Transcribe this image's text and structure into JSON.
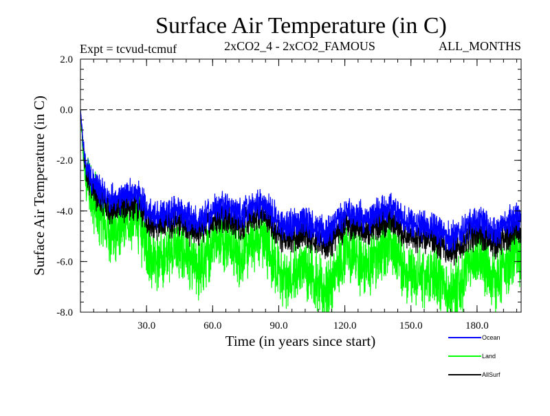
{
  "chart_data": {
    "type": "line",
    "title": "Surface Air Temperature (in C)",
    "subtitle_left": "Expt = tcvud-tcmuf",
    "subtitle_center": "2xCO2_4 - 2xCO2_FAMOUS",
    "subtitle_right": "ALL_MONTHS",
    "xlabel": "Time (in years since start)",
    "ylabel": "Surface Air Temperature (in C)",
    "xlim": [
      0,
      200
    ],
    "ylim": [
      -8.0,
      2.0
    ],
    "xticks": [
      30.0,
      60.0,
      90.0,
      120.0,
      150.0,
      180.0
    ],
    "xtick_labels": [
      "30.0",
      "60.0",
      "90.0",
      "120.0",
      "150.0",
      "180.0"
    ],
    "yticks": [
      -8.0,
      -6.0,
      -4.0,
      -2.0,
      0.0,
      2.0
    ],
    "ytick_labels": [
      "-8.0",
      "-6.0",
      "-4.0",
      "-2.0",
      "0.0",
      "2.0"
    ],
    "reference_line": {
      "y": 0.0,
      "style": "dashed"
    },
    "series": [
      {
        "name": "Land",
        "color": "#00ff00",
        "x": [
          0,
          1,
          2,
          3,
          5,
          8,
          10,
          15,
          20,
          25,
          30,
          40,
          50,
          60,
          70,
          80,
          90,
          100,
          110,
          120,
          130,
          140,
          150,
          160,
          170,
          180,
          190,
          200
        ],
        "values": [
          0.0,
          -1.5,
          -2.8,
          -3.5,
          -4.2,
          -4.7,
          -4.9,
          -5.0,
          -5.1,
          -5.1,
          -5.2,
          -5.3,
          -5.4,
          -5.6,
          -5.8,
          -5.9,
          -6.0,
          -6.1,
          -6.3,
          -6.3,
          -6.2,
          -6.1,
          -6.0,
          -6.4,
          -6.3,
          -6.5,
          -6.7,
          -6.6
        ]
      },
      {
        "name": "AllSurf",
        "color": "#000000",
        "x": [
          0,
          1,
          2,
          3,
          5,
          8,
          10,
          15,
          20,
          25,
          30,
          40,
          50,
          60,
          70,
          80,
          90,
          100,
          110,
          120,
          130,
          140,
          150,
          160,
          170,
          180,
          190,
          200
        ],
        "values": [
          0.0,
          -1.2,
          -2.3,
          -2.9,
          -3.4,
          -3.8,
          -3.9,
          -4.0,
          -4.1,
          -4.1,
          -4.2,
          -4.3,
          -4.4,
          -4.5,
          -4.6,
          -4.6,
          -4.7,
          -4.8,
          -4.9,
          -4.9,
          -4.8,
          -4.8,
          -4.7,
          -5.1,
          -5.1,
          -5.2,
          -5.3,
          -5.2
        ]
      },
      {
        "name": "Ocean",
        "color": "#0000ff",
        "x": [
          0,
          1,
          2,
          3,
          5,
          8,
          10,
          15,
          20,
          25,
          30,
          40,
          50,
          60,
          70,
          80,
          90,
          100,
          110,
          120,
          130,
          140,
          150,
          160,
          170,
          180,
          190,
          200
        ],
        "values": [
          0.0,
          -1.1,
          -2.1,
          -2.6,
          -3.1,
          -3.4,
          -3.5,
          -3.6,
          -3.7,
          -3.7,
          -3.8,
          -3.9,
          -4.0,
          -4.1,
          -4.1,
          -4.1,
          -4.2,
          -4.3,
          -4.4,
          -4.4,
          -4.3,
          -4.3,
          -4.2,
          -4.6,
          -4.6,
          -4.7,
          -4.8,
          -4.7
        ]
      }
    ],
    "noise_amplitude": {
      "Land": 1.8,
      "AllSurf": 0.9,
      "Ocean": 0.9
    },
    "legend_placement": "bottom-right",
    "legend": [
      "Ocean",
      "Land",
      "AllSurf"
    ],
    "grid": false
  }
}
